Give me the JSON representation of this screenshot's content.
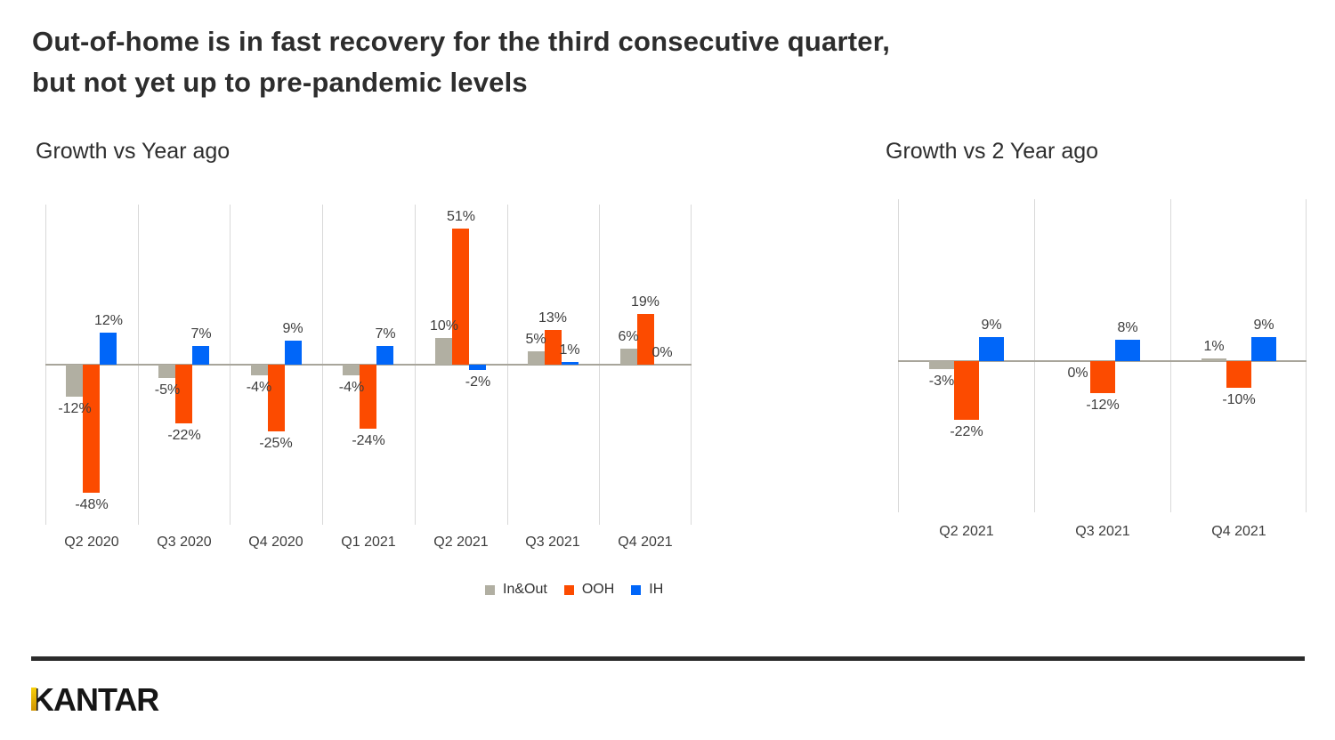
{
  "title": "Out-of-home is in fast recovery for the third consecutive quarter,\nbut not yet up to pre-pandemic levels",
  "footer": {
    "logo_text": "KANTAR"
  },
  "colors": {
    "in_out_gray": "#b1afa2",
    "ooh_orange": "#fc4b00",
    "ih_blue": "#0066f9",
    "axis_line": "#a8a59b",
    "gridline": "#d9d9d9",
    "label_text": "#3d3d3d",
    "title_text": "#2d2d2d",
    "footer_rule": "#2b2b2b",
    "logo_gold": "#e8ae00"
  },
  "chart_data": [
    {
      "type": "bar",
      "title": "Growth vs Year ago",
      "unit": "%",
      "categories": [
        "Q2 2020",
        "Q3 2020",
        "Q4 2020",
        "Q1 2021",
        "Q2 2021",
        "Q3 2021",
        "Q4 2021"
      ],
      "series": [
        {
          "name": "In&Out",
          "color": "#b1afa2",
          "values": [
            -12,
            -5,
            -4,
            -4,
            10,
            5,
            6
          ]
        },
        {
          "name": "OOH",
          "color": "#fc4b00",
          "values": [
            -48,
            -22,
            -25,
            -24,
            51,
            13,
            19
          ]
        },
        {
          "name": "IH",
          "color": "#0066f9",
          "values": [
            12,
            7,
            9,
            7,
            -2,
            1,
            0
          ]
        }
      ],
      "data_labels": true,
      "ylim": [
        -60,
        60
      ],
      "grid": "vertical-category-lines",
      "legend_position": "bottom"
    },
    {
      "type": "bar",
      "title": "Growth vs 2 Year ago",
      "unit": "%",
      "categories": [
        "Q2 2021",
        "Q3 2021",
        "Q4 2021"
      ],
      "series": [
        {
          "name": "In&Out",
          "color": "#b1afa2",
          "values": [
            -3,
            0,
            1
          ],
          "label_sides": [
            null,
            "below",
            null
          ]
        },
        {
          "name": "OOH",
          "color": "#fc4b00",
          "values": [
            -22,
            -12,
            -10
          ]
        },
        {
          "name": "IH",
          "color": "#0066f9",
          "values": [
            9,
            8,
            9
          ]
        }
      ],
      "data_labels": true,
      "ylim": [
        -60,
        60
      ],
      "grid": "vertical-category-lines",
      "legend_position": "none"
    }
  ]
}
